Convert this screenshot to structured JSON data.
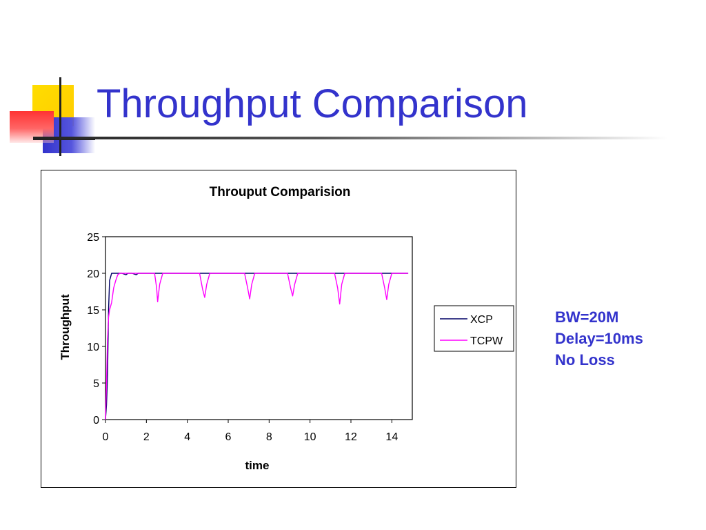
{
  "slide": {
    "title": "Throughput Comparison",
    "params": [
      "BW=20M",
      "Delay=10ms",
      "No Loss"
    ],
    "title_color": "#3333cc",
    "decoration_colors": {
      "yellow": "#ffcc00",
      "red": "#ff3333",
      "blue": "#3333cc"
    }
  },
  "chart_data": {
    "type": "line",
    "title": "Throuput Comparision",
    "xlabel": "time",
    "ylabel": "Throughput",
    "xlim": [
      0,
      15
    ],
    "ylim": [
      0,
      25
    ],
    "xticks": [
      0,
      2,
      4,
      6,
      8,
      10,
      12,
      14
    ],
    "yticks": [
      0,
      5,
      10,
      15,
      20,
      25
    ],
    "grid": false,
    "legend_position": "right",
    "series": [
      {
        "name": "XCP",
        "color": "#000066",
        "x": [
          0,
          0.05,
          0.1,
          0.15,
          0.2,
          0.3,
          0.4,
          0.6,
          0.8,
          1.0,
          1.1,
          1.3,
          1.5,
          1.6,
          1.7,
          2.0,
          14.8
        ],
        "y": [
          0,
          2,
          6,
          15,
          19,
          20,
          20,
          20,
          20,
          19.8,
          20,
          20,
          19.8,
          20,
          20,
          20,
          20
        ]
      },
      {
        "name": "TCPW",
        "color": "#ff00ff",
        "x": [
          0,
          0.05,
          0.1,
          0.15,
          0.2,
          0.3,
          0.4,
          0.5,
          0.6,
          0.7,
          2.4,
          2.5,
          2.55,
          2.65,
          2.8,
          4.6,
          4.75,
          4.85,
          4.95,
          5.1,
          6.8,
          6.95,
          7.05,
          7.15,
          7.3,
          8.9,
          9.05,
          9.15,
          9.25,
          9.4,
          11.2,
          11.35,
          11.45,
          11.55,
          11.7,
          13.5,
          13.65,
          13.75,
          13.85,
          14.0,
          14.8
        ],
        "y": [
          0,
          5,
          11,
          14,
          15,
          16,
          18,
          19,
          19.8,
          20,
          20,
          18,
          16.1,
          18.5,
          20,
          20,
          17.8,
          16.7,
          18.5,
          20,
          20,
          18,
          16.5,
          18.5,
          20,
          20,
          18,
          16.9,
          18.5,
          20,
          20,
          18,
          15.8,
          18.5,
          20,
          20,
          18,
          16.4,
          18.5,
          20,
          20
        ]
      }
    ]
  }
}
